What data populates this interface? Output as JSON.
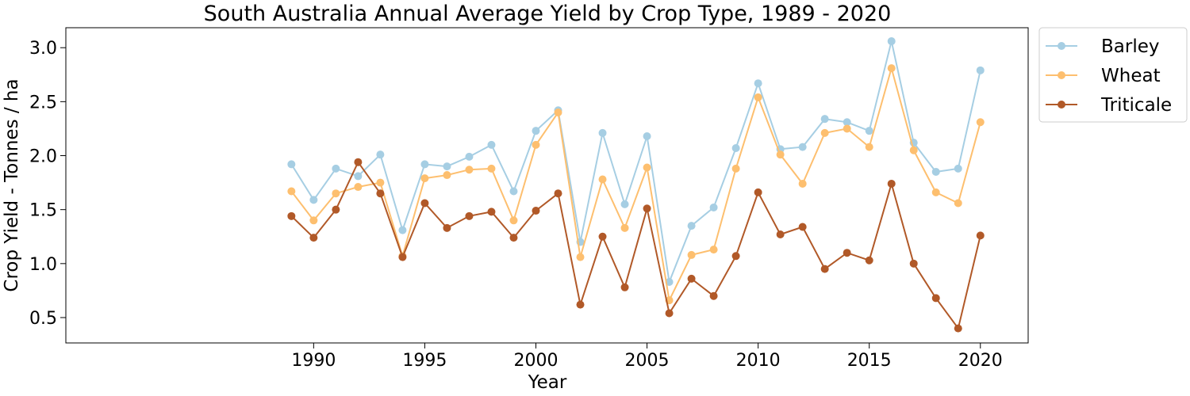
{
  "chart_data": {
    "type": "line",
    "title": "South Australia Annual Average Yield by Crop Type, 1989 - 2020",
    "xlabel": "Year",
    "ylabel": "Crop Yield - Tonnes / ha",
    "xlim": [
      1978.85,
      2022.15
    ],
    "ylim": [
      0.265,
      3.185
    ],
    "xticks": [
      1990,
      1995,
      2000,
      2005,
      2010,
      2015,
      2020
    ],
    "yticks": [
      0.5,
      1.0,
      1.5,
      2.0,
      2.5,
      3.0
    ],
    "ytick_labels": [
      "0.5",
      "1.0",
      "1.5",
      "2.0",
      "2.5",
      "3.0"
    ],
    "grid": false,
    "legend_position": "outside-right-top",
    "x": [
      1989,
      1990,
      1991,
      1992,
      1993,
      1994,
      1995,
      1996,
      1997,
      1998,
      1999,
      2000,
      2001,
      2002,
      2003,
      2004,
      2005,
      2006,
      2007,
      2008,
      2009,
      2010,
      2011,
      2012,
      2013,
      2014,
      2015,
      2016,
      2017,
      2018,
      2019,
      2020
    ],
    "series": [
      {
        "name": "Barley",
        "color": "#a6cee3",
        "values": [
          1.92,
          1.59,
          1.88,
          1.81,
          2.01,
          1.31,
          1.92,
          1.9,
          1.99,
          2.1,
          1.67,
          2.23,
          2.42,
          1.2,
          2.21,
          1.55,
          2.18,
          0.83,
          1.35,
          1.52,
          2.07,
          2.67,
          2.06,
          2.08,
          2.34,
          2.31,
          2.23,
          3.06,
          2.12,
          1.85,
          1.88,
          2.79
        ]
      },
      {
        "name": "Wheat",
        "color": "#fdbf6f",
        "values": [
          1.67,
          1.4,
          1.65,
          1.71,
          1.75,
          1.07,
          1.79,
          1.82,
          1.87,
          1.88,
          1.4,
          2.1,
          2.4,
          1.06,
          1.78,
          1.33,
          1.89,
          0.66,
          1.08,
          1.13,
          1.88,
          2.54,
          2.01,
          1.74,
          2.21,
          2.25,
          2.08,
          2.81,
          2.05,
          1.66,
          1.56,
          2.31
        ]
      },
      {
        "name": "Triticale",
        "color": "#b15928",
        "values": [
          1.44,
          1.24,
          1.5,
          1.94,
          1.65,
          1.06,
          1.56,
          1.33,
          1.44,
          1.48,
          1.24,
          1.49,
          1.65,
          0.62,
          1.25,
          0.78,
          1.51,
          0.54,
          0.86,
          0.7,
          1.07,
          1.66,
          1.27,
          1.34,
          0.95,
          1.1,
          1.03,
          1.74,
          1.0,
          0.68,
          0.4,
          1.26
        ]
      }
    ]
  }
}
